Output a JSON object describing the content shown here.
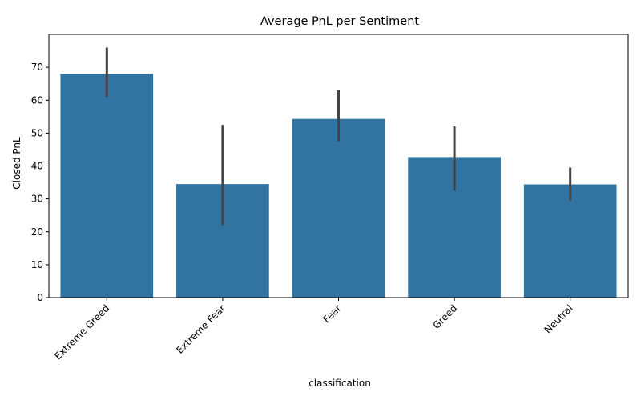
{
  "chart_data": {
    "type": "bar",
    "title": "Average PnL per Sentiment",
    "xlabel": "classification",
    "ylabel": "Closed PnL",
    "categories": [
      "Extreme Greed",
      "Extreme Fear",
      "Fear",
      "Greed",
      "Neutral"
    ],
    "values": [
      68,
      34.5,
      54.3,
      42.7,
      34.4
    ],
    "error_low": [
      61,
      22,
      47.5,
      32.5,
      29.5
    ],
    "error_high": [
      76,
      52.5,
      63,
      52,
      39.5
    ],
    "ylim": [
      0,
      80
    ],
    "yticks": [
      0,
      10,
      20,
      30,
      40,
      50,
      60,
      70
    ],
    "grid": false,
    "legend": "none",
    "bar_color": "#3274a1",
    "error_color": "#444444",
    "x_tick_rotation": 45
  }
}
